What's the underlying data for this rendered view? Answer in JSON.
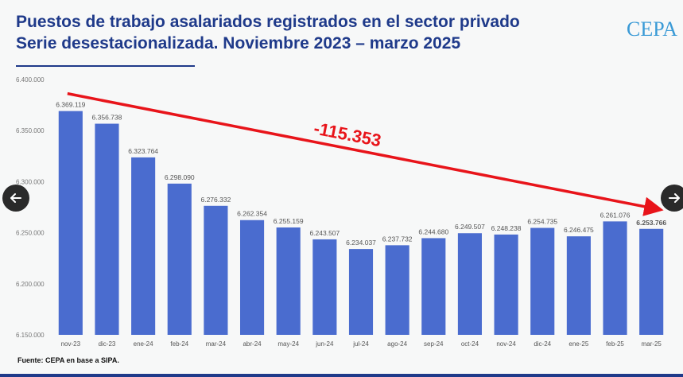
{
  "title": {
    "line1": "Puestos de trabajo asalariados registrados en el sector privado",
    "line2": "Serie desestacionalizada. Noviembre 2023 – marzo 2025"
  },
  "brand": {
    "name": "CEPA"
  },
  "source": "Fuente: CEPA en base a SIPA.",
  "navigation": {
    "prev_icon": "arrow-left-icon",
    "next_icon": "arrow-right-icon"
  },
  "colors": {
    "bar": "#4a6ccf",
    "arrow": "#e8141a",
    "title": "#1f3a8a",
    "brand": "#3a9ad6"
  },
  "chart_data": {
    "type": "bar",
    "categories": [
      "nov-23",
      "dic-23",
      "ene-24",
      "feb-24",
      "mar-24",
      "abr-24",
      "may-24",
      "jun-24",
      "jul-24",
      "ago-24",
      "sep-24",
      "oct-24",
      "nov-24",
      "dic-24",
      "ene-25",
      "feb-25",
      "mar-25"
    ],
    "values": [
      6369119,
      6356738,
      6323764,
      6298090,
      6276332,
      6262354,
      6255159,
      6243507,
      6234037,
      6237732,
      6244680,
      6249507,
      6248238,
      6254735,
      6246475,
      6261076,
      6253766
    ],
    "data_labels": [
      "6.369.119",
      "6.356.738",
      "6.323.764",
      "6.298.090",
      "6.276.332",
      "6.262.354",
      "6.255.159",
      "6.243.507",
      "6.234.037",
      "6.237.732",
      "6.244.680",
      "6.249.507",
      "6.248.238",
      "6.254.735",
      "6.246.475",
      "6.261.076",
      "6.253.766"
    ],
    "ylim": [
      6150000,
      6400000
    ],
    "yticks": [
      6150000,
      6200000,
      6250000,
      6300000,
      6350000,
      6400000
    ],
    "ytick_labels": [
      "6.150.000",
      "6.200.000",
      "6.250.000",
      "6.300.000",
      "6.350.000",
      "6.400.000"
    ],
    "annotation": {
      "text": "-115.353",
      "from_category": "nov-23",
      "to_category": "mar-25"
    },
    "grid": false,
    "xlabel": "",
    "ylabel": ""
  }
}
